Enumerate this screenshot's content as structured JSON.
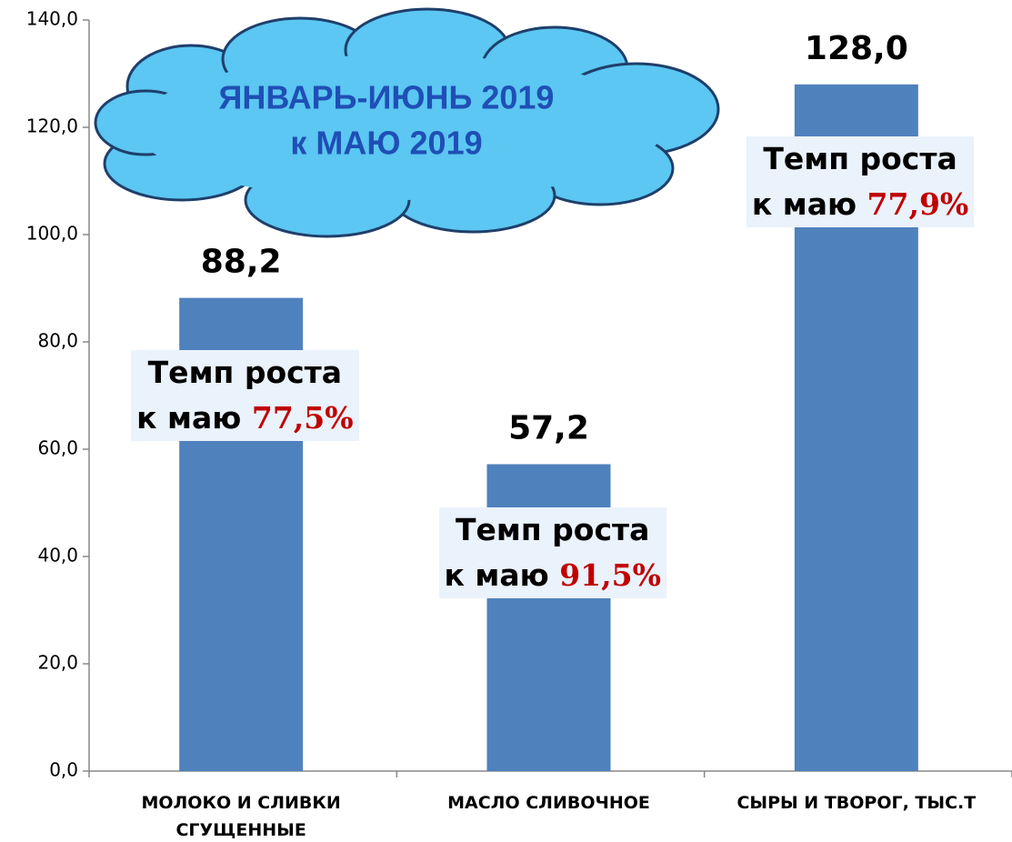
{
  "chart_data": {
    "type": "bar",
    "categories": [
      "МОЛОКО И СЛИВКИ СГУЩЕННЫЕ",
      "МАСЛО СЛИВОЧНОЕ",
      "СЫРЫ И ТВОРОГ, ТЫС.Т"
    ],
    "values": [
      88.2,
      57.2,
      128.0
    ],
    "value_labels": [
      "88,2",
      "57,2",
      "128,0"
    ],
    "color": "#4f81bd",
    "ylim": [
      0,
      140
    ],
    "yticks": [
      {
        "value": 0,
        "label": "0,0"
      },
      {
        "value": 20,
        "label": "20,0"
      },
      {
        "value": 40,
        "label": "40,0"
      },
      {
        "value": 60,
        "label": "60,0"
      },
      {
        "value": 80,
        "label": "80,0"
      },
      {
        "value": 100,
        "label": "100,0"
      },
      {
        "value": 120,
        "label": "120,0"
      },
      {
        "value": 140,
        "label": "140,0"
      }
    ],
    "title_lines": [
      "ЯНВАРЬ-ИЮНЬ 2019",
      "к МАЮ 2019"
    ],
    "annotations": [
      {
        "line1": "Темп роста",
        "line2": "к маю",
        "rate": "77,5%"
      },
      {
        "line1": "Темп роста",
        "line2": "к маю",
        "rate": "91,5%"
      },
      {
        "line1": "Темп роста",
        "line2": "к маю",
        "rate": "77,9%"
      }
    ]
  }
}
